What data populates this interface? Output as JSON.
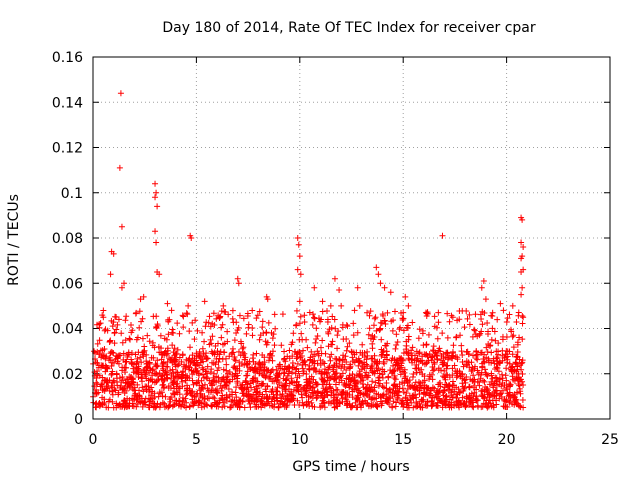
{
  "chart_data": {
    "type": "scatter",
    "title": "Day 180 of 2014, Rate Of TEC Index for receiver cpar",
    "xlabel": "GPS time / hours",
    "ylabel": "ROTI / TECUs",
    "xlim": [
      0,
      25
    ],
    "ylim": [
      0,
      0.16
    ],
    "xticks": [
      "0",
      "5",
      "10",
      "15",
      "20",
      "25"
    ],
    "yticks": [
      "0",
      "0.02",
      "0.04",
      "0.06",
      "0.08",
      "0.1",
      "0.12",
      "0.14",
      "0.16"
    ],
    "grid": true,
    "marker": "+",
    "color": "#ff0000",
    "series": [
      {
        "name": "ROTI",
        "points": [
          [
            1.35,
            0.144
          ],
          [
            1.3,
            0.111
          ],
          [
            1.4,
            0.085
          ],
          [
            3.0,
            0.104
          ],
          [
            3.05,
            0.1
          ],
          [
            3.0,
            0.098
          ],
          [
            3.1,
            0.094
          ],
          [
            3.0,
            0.083
          ],
          [
            3.05,
            0.078
          ],
          [
            0.9,
            0.074
          ],
          [
            1.0,
            0.073
          ],
          [
            4.7,
            0.081
          ],
          [
            4.75,
            0.08
          ],
          [
            3.1,
            0.065
          ],
          [
            3.2,
            0.064
          ],
          [
            0.85,
            0.064
          ],
          [
            1.5,
            0.06
          ],
          [
            1.4,
            0.058
          ],
          [
            9.9,
            0.08
          ],
          [
            9.95,
            0.077
          ],
          [
            10.0,
            0.072
          ],
          [
            9.9,
            0.066
          ],
          [
            10.05,
            0.064
          ],
          [
            10.0,
            0.052
          ],
          [
            10.7,
            0.058
          ],
          [
            11.7,
            0.062
          ],
          [
            11.9,
            0.057
          ],
          [
            12.8,
            0.058
          ],
          [
            12.9,
            0.05
          ],
          [
            13.7,
            0.067
          ],
          [
            13.8,
            0.064
          ],
          [
            13.9,
            0.06
          ],
          [
            14.1,
            0.058
          ],
          [
            14.4,
            0.056
          ],
          [
            15.1,
            0.054
          ],
          [
            15.25,
            0.05
          ],
          [
            15.0,
            0.047
          ],
          [
            16.9,
            0.081
          ],
          [
            16.7,
            0.047
          ],
          [
            18.9,
            0.061
          ],
          [
            18.8,
            0.058
          ],
          [
            19.0,
            0.053
          ],
          [
            19.7,
            0.051
          ],
          [
            20.7,
            0.089
          ],
          [
            20.75,
            0.088
          ],
          [
            20.7,
            0.078
          ],
          [
            20.8,
            0.076
          ],
          [
            20.75,
            0.072
          ],
          [
            20.7,
            0.071
          ],
          [
            20.8,
            0.066
          ],
          [
            20.7,
            0.065
          ],
          [
            20.75,
            0.058
          ],
          [
            20.7,
            0.055
          ],
          [
            20.8,
            0.045
          ],
          [
            8.4,
            0.054
          ],
          [
            8.45,
            0.053
          ],
          [
            7.0,
            0.062
          ],
          [
            7.05,
            0.06
          ],
          [
            5.4,
            0.052
          ],
          [
            6.3,
            0.05
          ],
          [
            2.3,
            0.053
          ],
          [
            2.45,
            0.054
          ],
          [
            3.6,
            0.051
          ],
          [
            3.8,
            0.048
          ],
          [
            4.6,
            0.05
          ],
          [
            11.1,
            0.052
          ],
          [
            11.5,
            0.05
          ],
          [
            12.0,
            0.05
          ],
          [
            16.1,
            0.047
          ],
          [
            17.4,
            0.045
          ],
          [
            18.2,
            0.046
          ],
          [
            0.5,
            0.045
          ],
          [
            0.3,
            0.042
          ],
          [
            20.3,
            0.05
          ]
        ],
        "dense_band": {
          "x_range": [
            0,
            20.8
          ],
          "y_range": [
            0.005,
            0.03
          ],
          "note": "continuous dense cloud of + markers between ~0.005 and ~0.03 TECUs over 0–20.8 h, with frequent excursions to ~0.03–0.05"
        }
      }
    ]
  }
}
